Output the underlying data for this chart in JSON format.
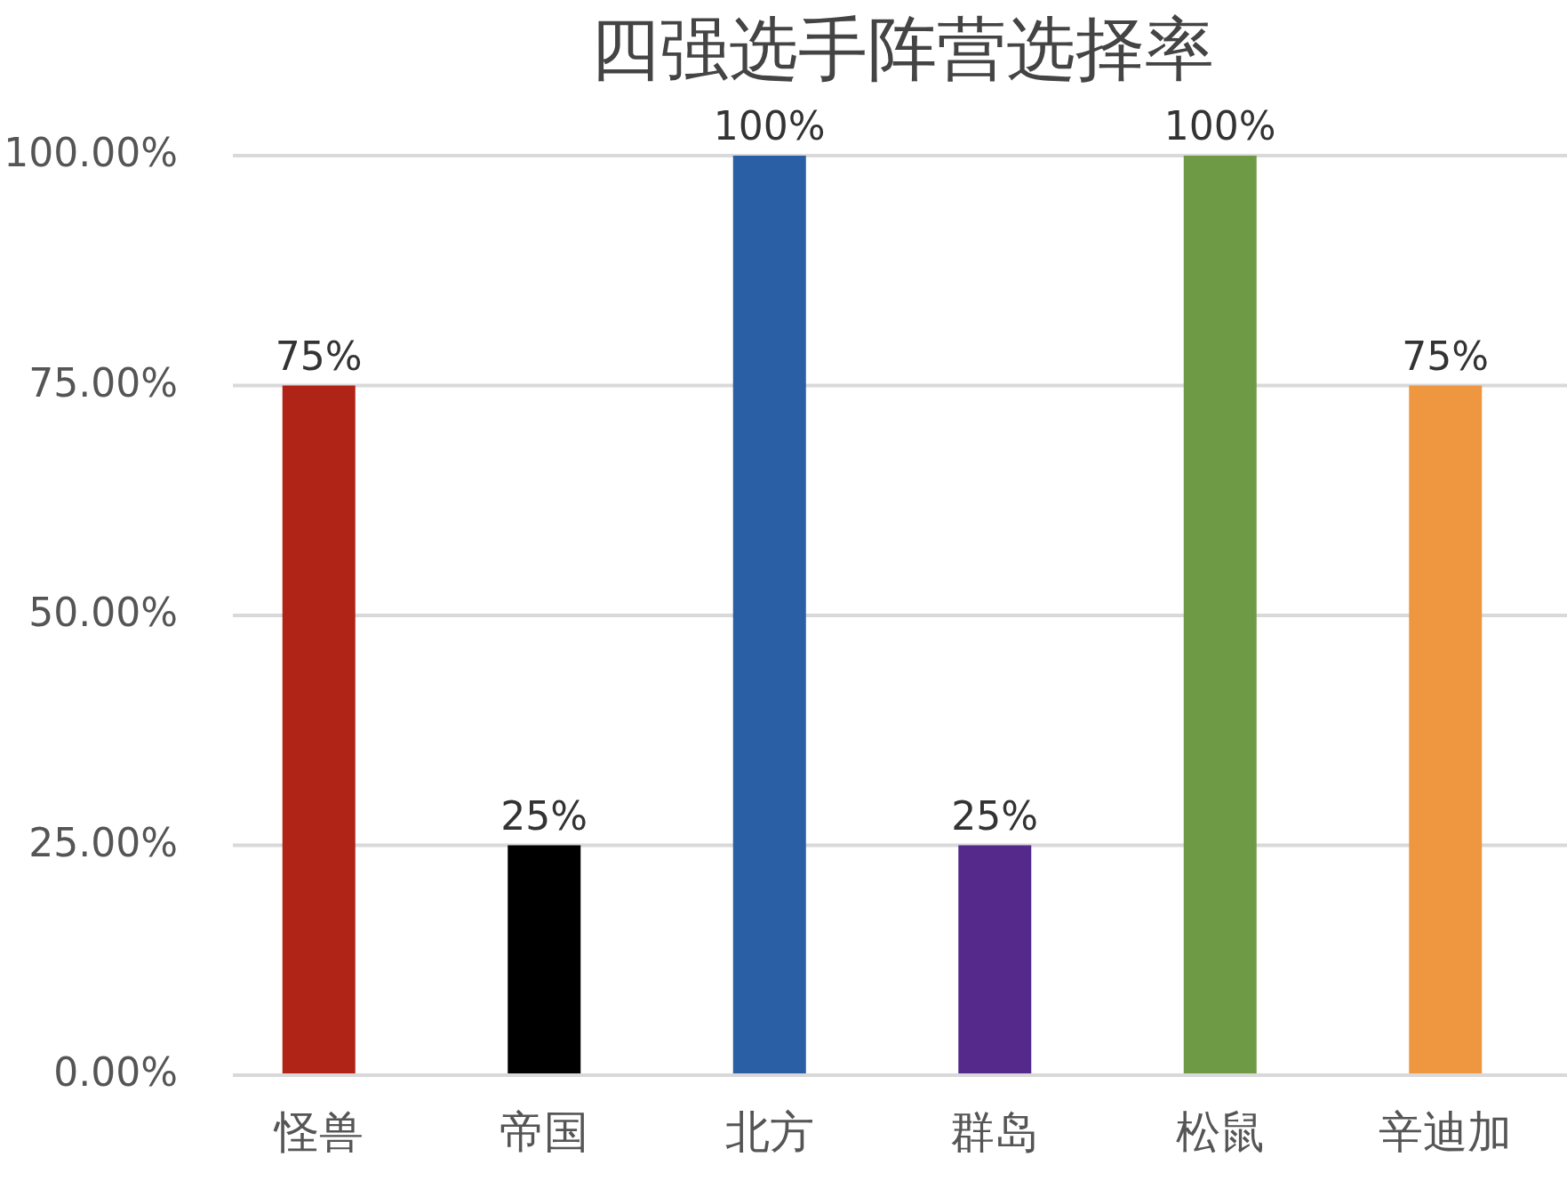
{
  "chart_data": {
    "type": "bar",
    "title": "四强选手阵营选择率",
    "categories": [
      "怪兽",
      "帝国",
      "北方",
      "群岛",
      "松鼠",
      "辛迪加"
    ],
    "values": [
      75,
      25,
      100,
      25,
      100,
      75
    ],
    "colors": [
      "#b02317",
      "#000000",
      "#2a5fa5",
      "#55288c",
      "#6f9a45",
      "#ee9640"
    ],
    "value_labels": [
      "75%",
      "25%",
      "100%",
      "25%",
      "100%",
      "75%"
    ],
    "ylim": [
      0,
      100
    ],
    "yticks": [
      {
        "value": 0,
        "label": "0.00%"
      },
      {
        "value": 25,
        "label": "25.00%"
      },
      {
        "value": 50,
        "label": "50.00%"
      },
      {
        "value": 75,
        "label": "75.00%"
      },
      {
        "value": 100,
        "label": "100.00%"
      }
    ],
    "grid": "y"
  }
}
